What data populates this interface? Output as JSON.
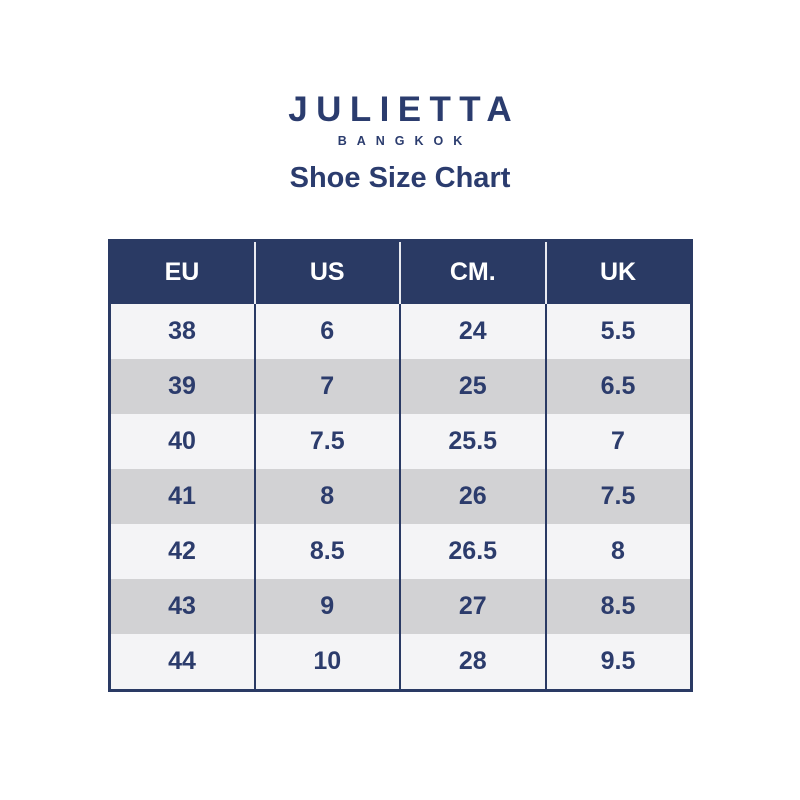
{
  "brand": {
    "name": "JULIETTA",
    "city": "BANGKOK"
  },
  "title": "Shoe Size Chart",
  "colors": {
    "navy_header_bg": "#2a3a64",
    "navy_text": "#2c3c6c",
    "row_light": "#f4f4f6",
    "row_gray": "#d2d2d4",
    "header_text": "#ffffff",
    "header_divider": "#e9eaf0"
  },
  "chart_data": {
    "type": "table",
    "title": "Shoe Size Chart",
    "columns": [
      "EU",
      "US",
      "CM.",
      "UK"
    ],
    "rows": [
      [
        "38",
        "6",
        "24",
        "5.5"
      ],
      [
        "39",
        "7",
        "25",
        "6.5"
      ],
      [
        "40",
        "7.5",
        "25.5",
        "7"
      ],
      [
        "41",
        "8",
        "26",
        "7.5"
      ],
      [
        "42",
        "8.5",
        "26.5",
        "8"
      ],
      [
        "43",
        "9",
        "27",
        "8.5"
      ],
      [
        "44",
        "10",
        "28",
        "9.5"
      ]
    ]
  }
}
